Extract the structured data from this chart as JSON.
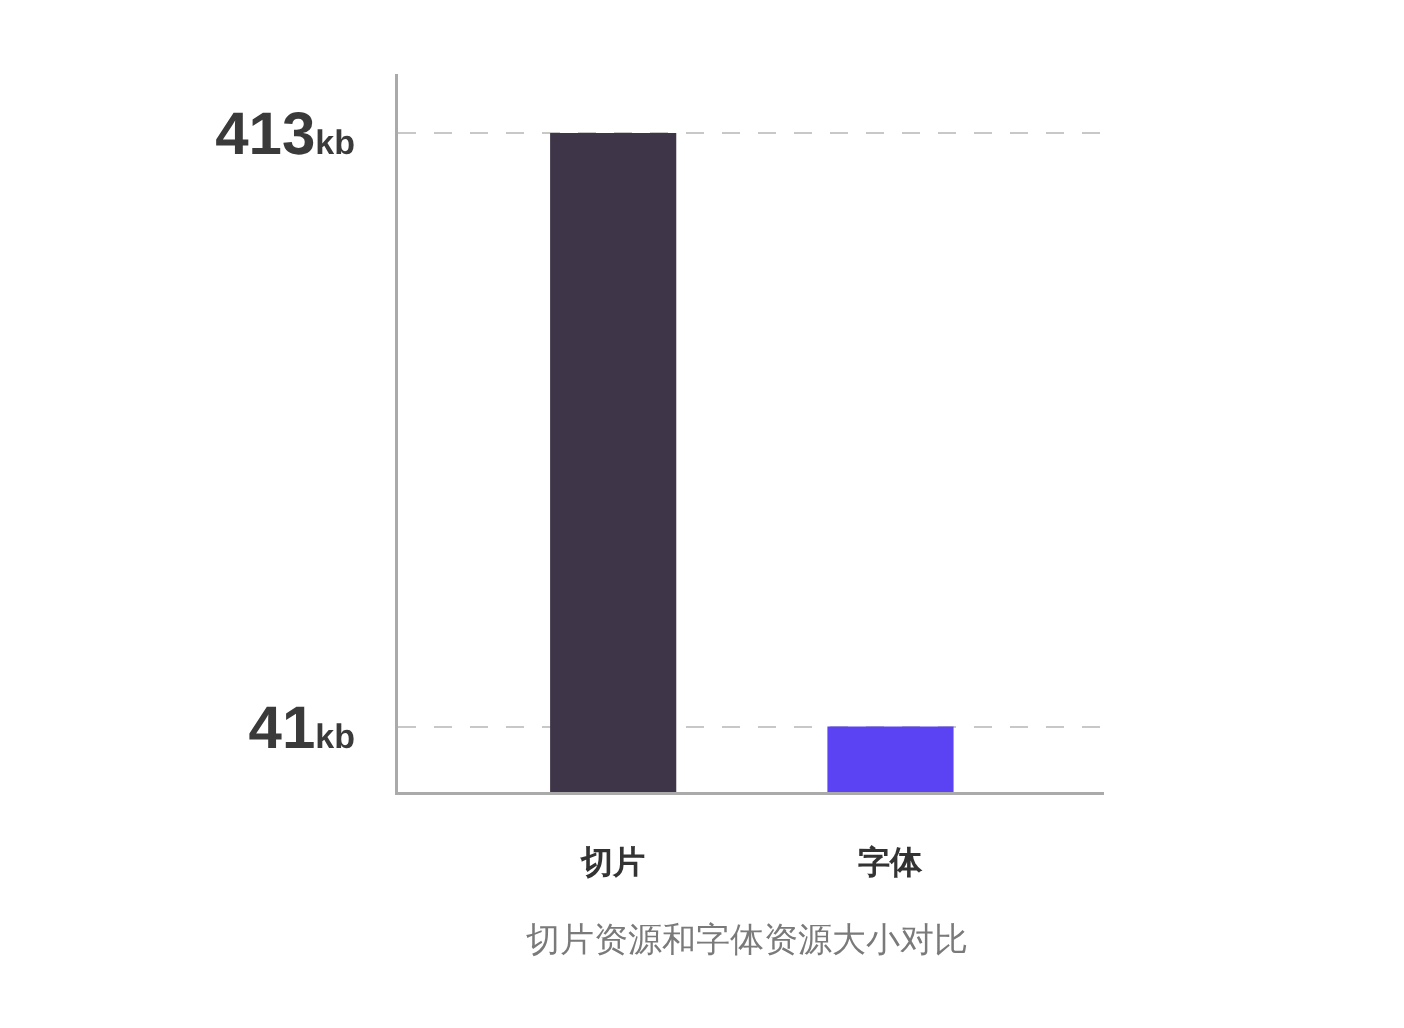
{
  "chart_data": {
    "type": "bar",
    "title": "切片资源和字体资源大小对比",
    "categories": [
      "切片",
      "字体"
    ],
    "values": [
      413,
      41
    ],
    "colors": [
      "#3f3548",
      "#5b42f3"
    ],
    "ylim": [
      0,
      450
    ],
    "yticks": [
      {
        "value": 41,
        "label": "41kb"
      },
      {
        "value": 413,
        "label": "413kb"
      }
    ],
    "grid": "y"
  }
}
